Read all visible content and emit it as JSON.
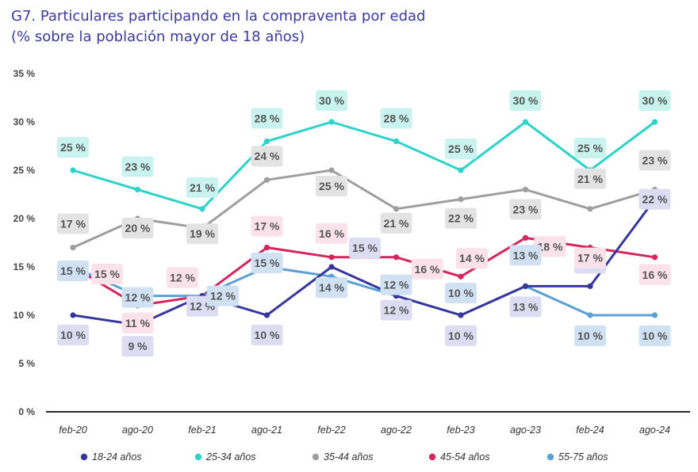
{
  "title_line1": "G7. Particulares participando en la compraventa por edad",
  "title_line2": "(% sobre la población mayor de 18 años)",
  "chart_data": {
    "type": "line",
    "categories": [
      "feb-20",
      "ago-20",
      "feb-21",
      "ago-21",
      "feb-22",
      "ago-22",
      "feb-23",
      "ago-23",
      "feb-24",
      "ago-24"
    ],
    "y_ticks": [
      "0 %",
      "5 %",
      "10 %",
      "15 %",
      "20 %",
      "25 %",
      "30 %",
      "35 %"
    ],
    "ylim": [
      0,
      35
    ],
    "unit": "%",
    "grid": false,
    "legend_position": "bottom",
    "series": [
      {
        "name": "18-24 años",
        "color": "#36379c",
        "label_bg": "#dcdcf3",
        "values": [
          10,
          9,
          12,
          10,
          15,
          12,
          10,
          13,
          13,
          22
        ]
      },
      {
        "name": "25-34 años",
        "color": "#2bd3c8",
        "label_bg": "#c9f3ee",
        "values": [
          25,
          23,
          21,
          28,
          30,
          28,
          25,
          30,
          25,
          30
        ]
      },
      {
        "name": "35-44 años",
        "color": "#9e9e9e",
        "label_bg": "#e3e3e3",
        "values": [
          17,
          20,
          19,
          24,
          25,
          21,
          22,
          23,
          21,
          23
        ]
      },
      {
        "name": "45-54 años",
        "color": "#d6245c",
        "label_bg": "#fbe1ea",
        "values": [
          15,
          11,
          12,
          17,
          16,
          16,
          14,
          18,
          17,
          16
        ]
      },
      {
        "name": "55-75 años",
        "color": "#5b9fd6",
        "label_bg": "#cfe1f3",
        "values": [
          15,
          12,
          12,
          15,
          14,
          12,
          10,
          13,
          10,
          10
        ]
      }
    ]
  }
}
